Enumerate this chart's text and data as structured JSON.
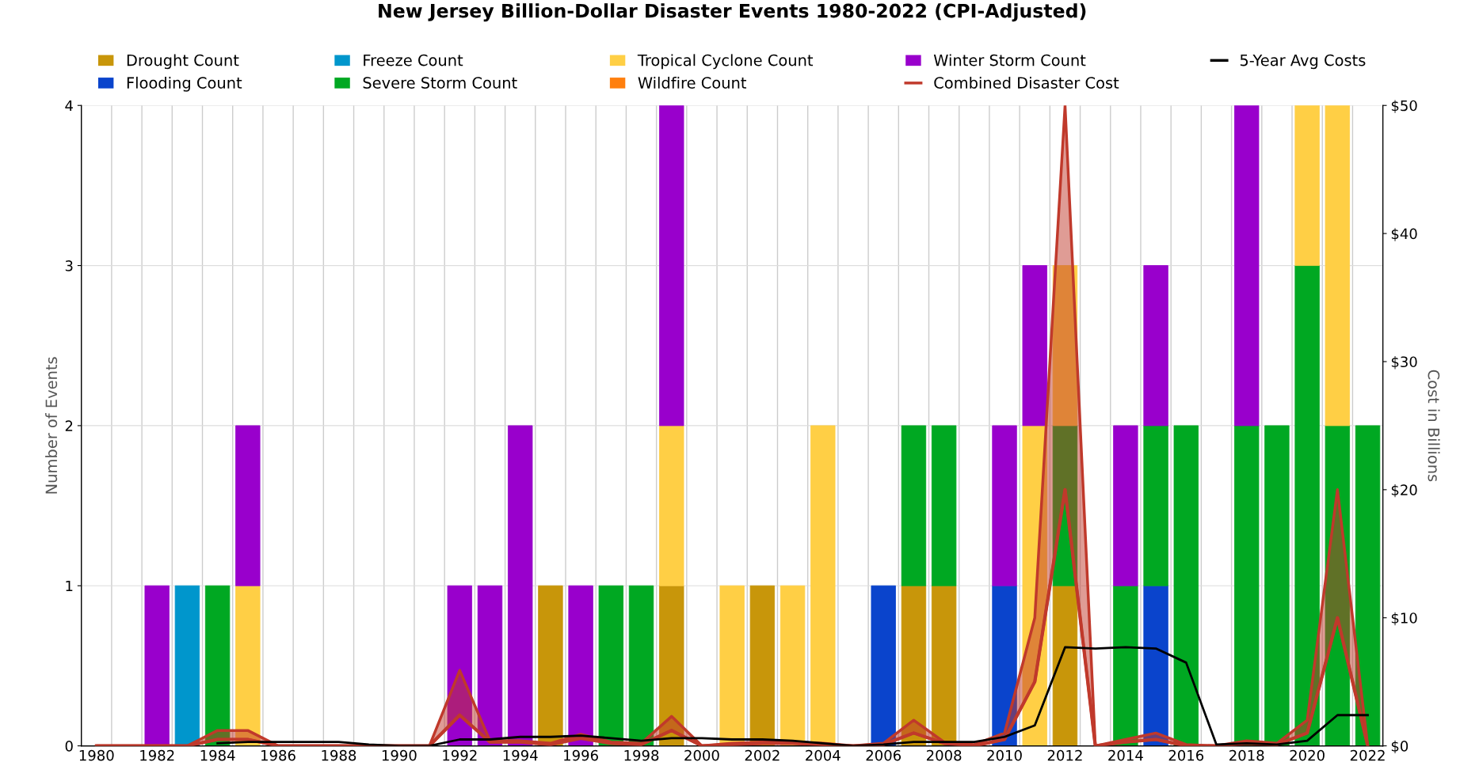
{
  "chart_data": {
    "type": "bar",
    "title": "New Jersey Billion-Dollar Disaster Events 1980-2022 (CPI-Adjusted)",
    "ylabel": "Number of Events",
    "y2label": "Cost in Billions",
    "stacked": true,
    "grid": true,
    "legend": "top",
    "categories": [
      "1980",
      null,
      "1982",
      null,
      "1984",
      null,
      "1986",
      null,
      "1988",
      null,
      "1990",
      null,
      "1992",
      null,
      "1994",
      null,
      "1996",
      null,
      "1998",
      null,
      "2000",
      null,
      "2002",
      null,
      "2004",
      null,
      "2006",
      null,
      "2008",
      null,
      "2010",
      null,
      "2012",
      null,
      "2014",
      null,
      "2016",
      null,
      "2018",
      null,
      "2020",
      null,
      "2022"
    ],
    "ylim": [
      0,
      4
    ],
    "yticks": [
      0,
      1,
      2,
      3,
      4
    ],
    "y2lim": [
      0,
      50
    ],
    "y2ticks": [
      {
        "value": 0,
        "label": "$0"
      },
      {
        "value": 10,
        "label": "$10"
      },
      {
        "value": 20,
        "label": "$20"
      },
      {
        "value": 30,
        "label": "$30"
      },
      {
        "value": 40,
        "label": "$40"
      },
      {
        "value": 50,
        "label": "$50"
      }
    ],
    "series": [
      {
        "name": "Drought Count",
        "color": "#c8960a",
        "values": [
          0,
          0,
          0,
          0,
          0,
          0,
          0,
          0,
          0,
          0,
          0,
          0,
          0,
          0,
          0,
          1,
          0,
          0,
          0,
          1,
          0,
          0,
          1,
          0,
          0,
          0,
          0,
          1,
          1,
          0,
          0,
          0,
          1,
          0,
          0,
          0,
          0,
          0,
          0,
          0,
          0,
          0,
          0
        ]
      },
      {
        "name": "Flooding Count",
        "color": "#0a44cc",
        "values": [
          0,
          0,
          0,
          0,
          0,
          0,
          0,
          0,
          0,
          0,
          0,
          0,
          0,
          0,
          0,
          0,
          0,
          0,
          0,
          0,
          0,
          0,
          0,
          0,
          0,
          0,
          1,
          0,
          0,
          0,
          1,
          0,
          0,
          0,
          0,
          1,
          0,
          0,
          0,
          0,
          0,
          0,
          0
        ]
      },
      {
        "name": "Freeze Count",
        "color": "#0096cc",
        "values": [
          0,
          0,
          0,
          1,
          0,
          0,
          0,
          0,
          0,
          0,
          0,
          0,
          0,
          0,
          0,
          0,
          0,
          0,
          0,
          0,
          0,
          0,
          0,
          0,
          0,
          0,
          0,
          0,
          0,
          0,
          0,
          0,
          0,
          0,
          0,
          0,
          0,
          0,
          0,
          0,
          0,
          0,
          0
        ]
      },
      {
        "name": "Severe Storm Count",
        "color": "#00a822",
        "values": [
          0,
          0,
          0,
          0,
          1,
          0,
          0,
          0,
          0,
          0,
          0,
          0,
          0,
          0,
          0,
          0,
          0,
          1,
          1,
          0,
          0,
          0,
          0,
          0,
          0,
          0,
          0,
          1,
          1,
          0,
          0,
          0,
          1,
          0,
          1,
          1,
          2,
          0,
          2,
          2,
          3,
          2,
          2
        ]
      },
      {
        "name": "Tropical Cyclone Count",
        "color": "#ffcf45",
        "values": [
          0,
          0,
          0,
          0,
          0,
          1,
          0,
          0,
          0,
          0,
          0,
          0,
          0,
          0,
          0,
          0,
          0,
          0,
          0,
          1,
          0,
          1,
          0,
          1,
          2,
          0,
          0,
          0,
          0,
          0,
          0,
          2,
          1,
          0,
          0,
          0,
          0,
          0,
          0,
          0,
          1,
          2,
          0
        ]
      },
      {
        "name": "Wildfire Count",
        "color": "#ff7f0e",
        "values": [
          0,
          0,
          0,
          0,
          0,
          0,
          0,
          0,
          0,
          0,
          0,
          0,
          0,
          0,
          0,
          0,
          0,
          0,
          0,
          0,
          0,
          0,
          0,
          0,
          0,
          0,
          0,
          0,
          0,
          0,
          0,
          0,
          0,
          0,
          0,
          0,
          0,
          0,
          0,
          0,
          0,
          0,
          0
        ]
      },
      {
        "name": "Winter Storm Count",
        "color": "#9900cc",
        "values": [
          0,
          0,
          1,
          0,
          0,
          1,
          0,
          0,
          0,
          0,
          0,
          0,
          1,
          1,
          2,
          0,
          1,
          0,
          0,
          2,
          0,
          0,
          0,
          0,
          0,
          0,
          0,
          0,
          0,
          0,
          1,
          1,
          0,
          0,
          1,
          1,
          0,
          0,
          2,
          0,
          0,
          0,
          0
        ]
      },
      {
        "name": "Combined Disaster Cost",
        "type": "line",
        "axis": "y2",
        "color": "#c0392b",
        "values": [
          0,
          0,
          0,
          0,
          0.5,
          0.5,
          0,
          0,
          0,
          0,
          0,
          0,
          2.4,
          0.3,
          0.3,
          0.1,
          0.6,
          0.2,
          0.1,
          1.2,
          0,
          0.1,
          0.2,
          0.2,
          0.1,
          0,
          0.1,
          1.0,
          0.2,
          0,
          0.5,
          5.0,
          20,
          0,
          0.3,
          0.5,
          0,
          0,
          0.2,
          0.1,
          1.0,
          10,
          0
        ],
        "lower": [
          0,
          0,
          0,
          0,
          0.5,
          0.5,
          0,
          0,
          0,
          0,
          0,
          0,
          2.4,
          0.3,
          0.3,
          0.1,
          0.6,
          0.2,
          0.1,
          1.2,
          0,
          0.1,
          0.2,
          0.2,
          0.1,
          0,
          0.1,
          1.0,
          0.2,
          0,
          0.5,
          5.0,
          20,
          0,
          0.3,
          0.5,
          0,
          0,
          0.2,
          0.1,
          1.0,
          10,
          0
        ],
        "upper": [
          0,
          0,
          0,
          0,
          1.2,
          1.2,
          0,
          0,
          0,
          0,
          0,
          0,
          5.9,
          0.4,
          0.4,
          0.2,
          0.9,
          0.3,
          0.2,
          2.3,
          0,
          0.2,
          0.3,
          0.3,
          0.2,
          0,
          0.2,
          2.0,
          0.3,
          0.1,
          1.0,
          10.0,
          50,
          0,
          0.5,
          1.0,
          0.1,
          0,
          0.4,
          0.2,
          2.0,
          20,
          0
        ]
      },
      {
        "name": "5-Year Avg Costs",
        "type": "line",
        "axis": "y2",
        "color": "#000000",
        "values": [
          null,
          null,
          null,
          null,
          0.2,
          0.3,
          0.3,
          0.3,
          0.3,
          0.1,
          0,
          0,
          0.5,
          0.5,
          0.7,
          0.7,
          0.8,
          0.6,
          0.4,
          0.6,
          0.6,
          0.5,
          0.5,
          0.4,
          0.2,
          0,
          0.1,
          0.3,
          0.3,
          0.3,
          0.7,
          1.6,
          7.7,
          7.6,
          7.7,
          7.6,
          6.5,
          0.1,
          0.2,
          0.1,
          0.4,
          2.4,
          2.4
        ]
      }
    ]
  }
}
